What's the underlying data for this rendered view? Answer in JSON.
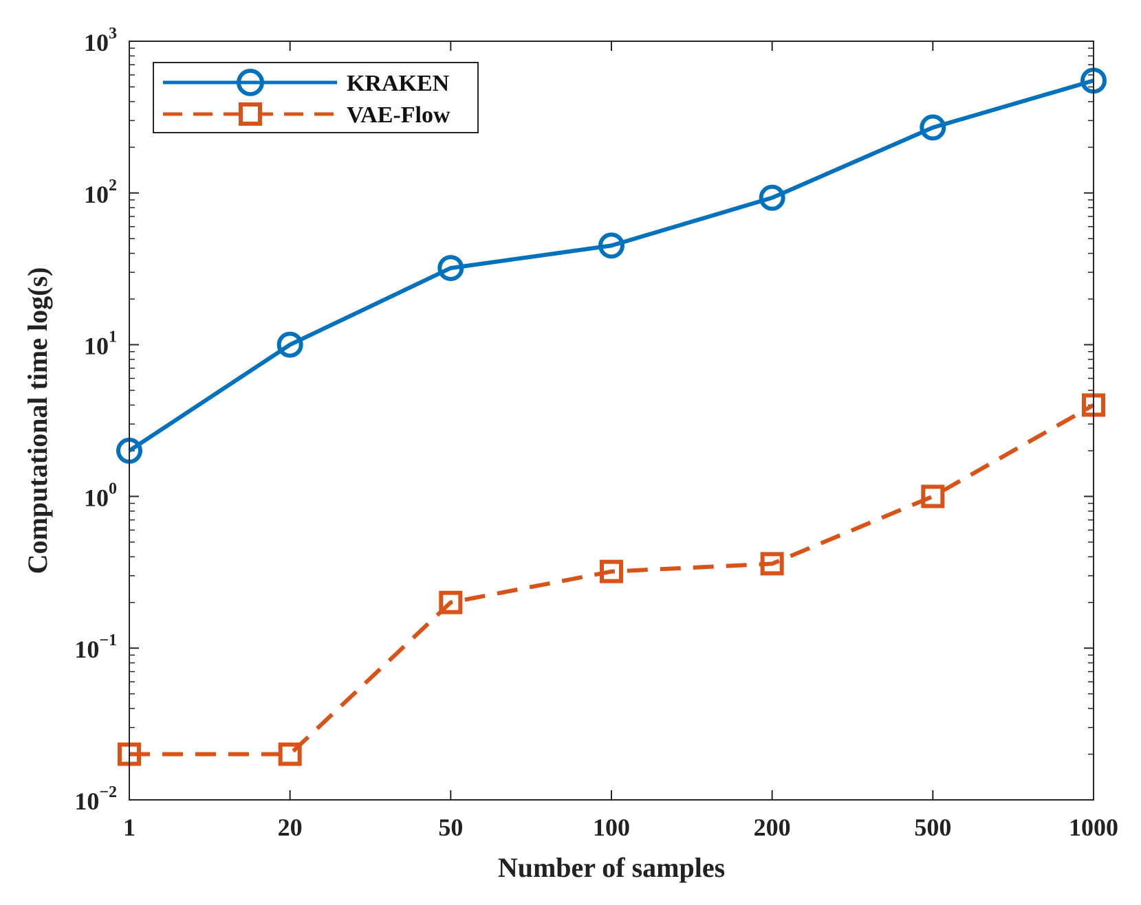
{
  "chart_data": {
    "type": "line",
    "title": "",
    "xlabel": "Number of samples",
    "ylabel": "Computational time log(s)",
    "yscale": "log",
    "categories": [
      "1",
      "20",
      "50",
      "100",
      "200",
      "500",
      "1000"
    ],
    "ylim": [
      0.01,
      1000
    ],
    "yticks": [
      {
        "base": "10",
        "exp": "−2",
        "value": 0.01
      },
      {
        "base": "10",
        "exp": "−1",
        "value": 0.1
      },
      {
        "base": "10",
        "exp": "0",
        "value": 1
      },
      {
        "base": "10",
        "exp": "1",
        "value": 10
      },
      {
        "base": "10",
        "exp": "2",
        "value": 100
      },
      {
        "base": "10",
        "exp": "3",
        "value": 1000
      }
    ],
    "legend_position": "top-left",
    "grid": false,
    "series": [
      {
        "name": "KRAKEN",
        "color": "#0072BD",
        "style": "solid",
        "marker": "circle",
        "values": [
          2,
          10,
          32,
          45,
          93,
          270,
          550
        ]
      },
      {
        "name": "VAE-Flow",
        "color": "#D95319",
        "style": "dashed",
        "marker": "square",
        "values": [
          0.02,
          0.02,
          0.2,
          0.32,
          0.36,
          1,
          4
        ]
      }
    ]
  }
}
